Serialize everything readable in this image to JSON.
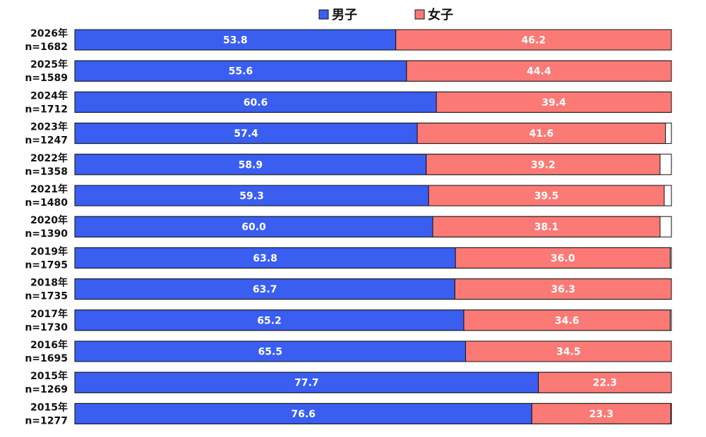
{
  "chart_data": {
    "type": "bar",
    "orientation": "horizontal",
    "stacked": true,
    "legend": {
      "placement": "top-center"
    },
    "xlim": [
      0,
      100
    ],
    "grid": false,
    "colors": {
      "男子": "#3a5ef0",
      "女子": "#fb7a76",
      "remainder": "#ffffff",
      "border": "#111111"
    },
    "categories": [
      {
        "year": "2026年",
        "n": "n=1682"
      },
      {
        "year": "2025年",
        "n": "n=1589"
      },
      {
        "year": "2024年",
        "n": "n=1712"
      },
      {
        "year": "2023年",
        "n": "n=1247"
      },
      {
        "year": "2022年",
        "n": "n=1358"
      },
      {
        "year": "2021年",
        "n": "n=1480"
      },
      {
        "year": "2020年",
        "n": "n=1390"
      },
      {
        "year": "2019年",
        "n": "n=1795"
      },
      {
        "year": "2018年",
        "n": "n=1735"
      },
      {
        "year": "2017年",
        "n": "n=1730"
      },
      {
        "year": "2016年",
        "n": "n=1695"
      },
      {
        "year": "2015年",
        "n": "n=1269"
      },
      {
        "year": "2015年",
        "n": "n=1277"
      }
    ],
    "series": [
      {
        "name": "男子",
        "values": [
          53.8,
          55.6,
          60.6,
          57.4,
          58.9,
          59.3,
          60.0,
          63.8,
          63.7,
          65.2,
          65.5,
          77.7,
          76.6
        ],
        "labels": [
          "53.8",
          "55.6",
          "60.6",
          "57.4",
          "58.9",
          "59.3",
          "60.0",
          "63.8",
          "63.7",
          "65.2",
          "65.5",
          "77.7",
          "76.6"
        ]
      },
      {
        "name": "女子",
        "values": [
          46.2,
          44.4,
          39.4,
          41.6,
          39.2,
          39.5,
          38.1,
          36.0,
          36.3,
          34.6,
          34.5,
          22.3,
          23.3
        ],
        "labels": [
          "46.2",
          "44.4",
          "39.4",
          "41.6",
          "39.2",
          "39.5",
          "38.1",
          "36.0",
          "36.3",
          "34.6",
          "34.5",
          "22.3",
          "23.3"
        ]
      }
    ]
  }
}
